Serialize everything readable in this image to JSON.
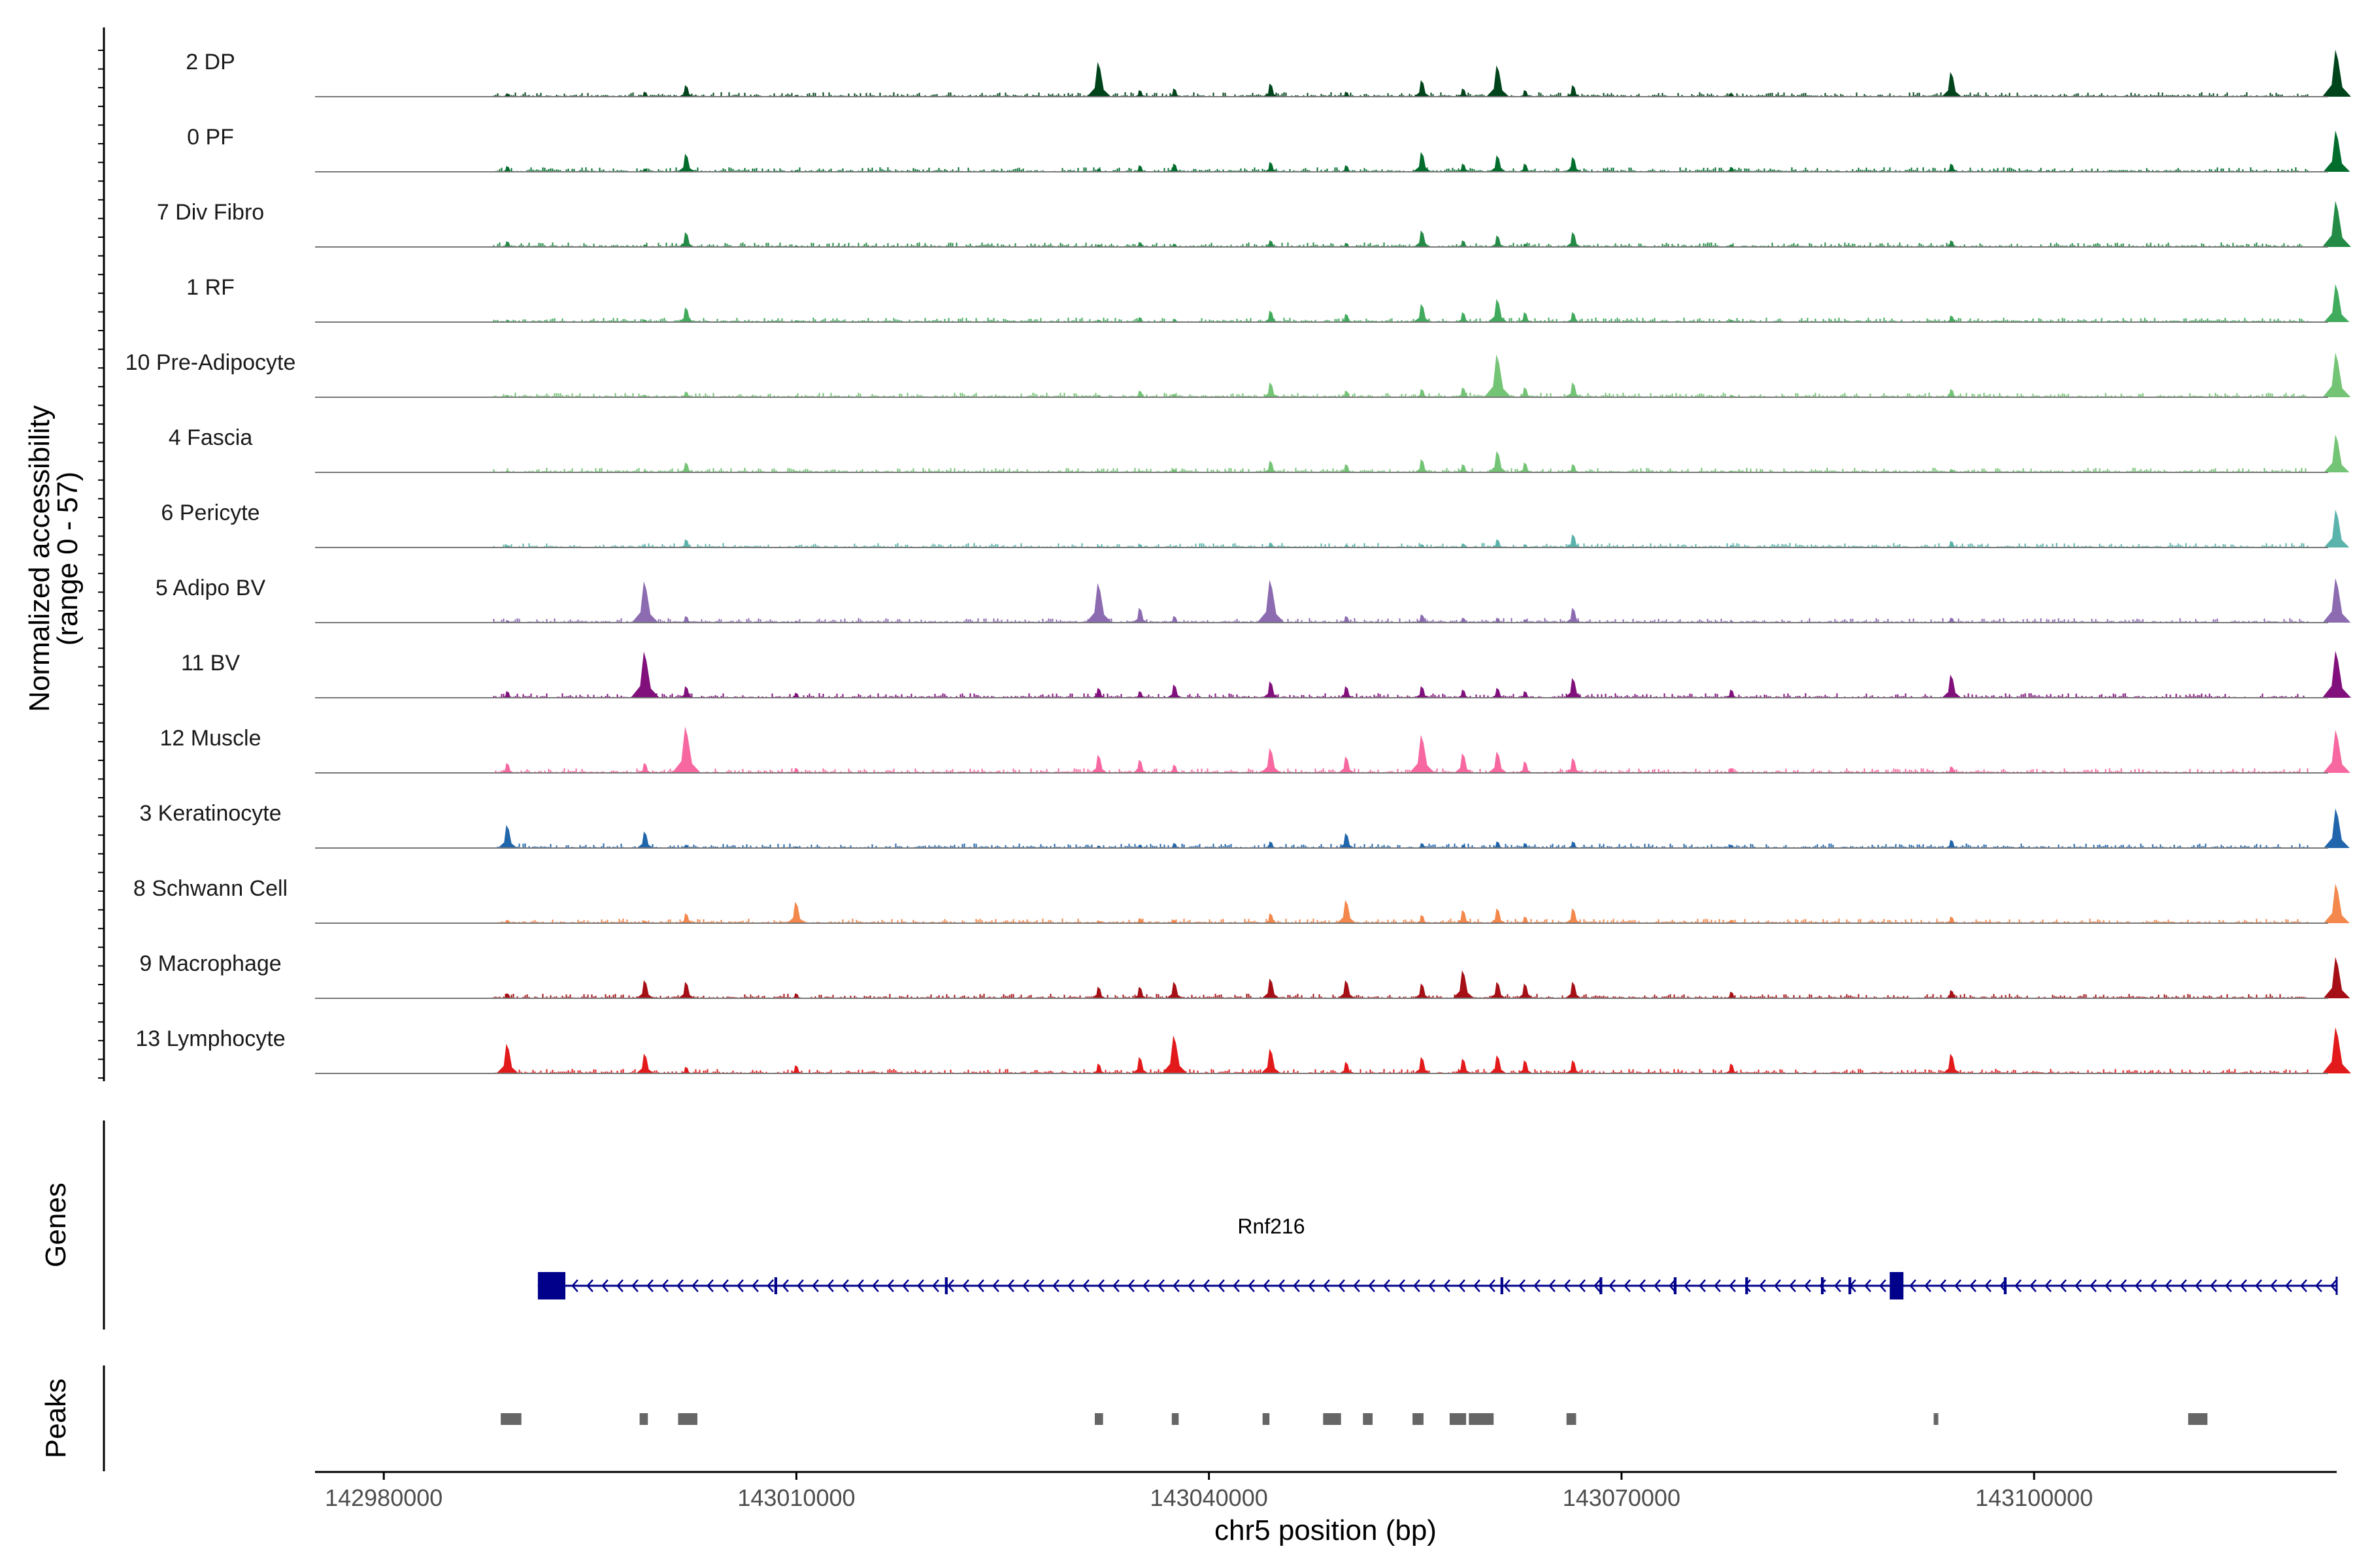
{
  "chart_data": {
    "type": "area",
    "title": "",
    "chromosome": "chr5",
    "xlabel": "chr5 position (bp)",
    "ylabel": "Normalized accessibility\n(range 0 - 57)",
    "ylabel_lines": [
      "Normalized accessibility",
      "(range 0 - 57)"
    ],
    "y_range": [
      0,
      57
    ],
    "xlim": [
      142975000,
      143122000
    ],
    "x_ticks": [
      142980000,
      143010000,
      143040000,
      143070000,
      143100000
    ],
    "x_tick_labels": [
      "142980000",
      "143010000",
      "143040000",
      "143070000",
      "143100000"
    ],
    "peak_centers": [
      142989000,
      142999000,
      143002000,
      143032000,
      143037500,
      143044500,
      143050000,
      143052000,
      143055500,
      143058500,
      143061000,
      143063000,
      143066500,
      143094000,
      143122000
    ],
    "series": [
      {
        "name": "2 DP",
        "color": "#00441b",
        "values": [
          4,
          6,
          14,
          2,
          42,
          8,
          10,
          16,
          6,
          20,
          10,
          38,
          8,
          14,
          4,
          30,
          57
        ]
      },
      {
        "name": "0 PF",
        "color": "#006d2c",
        "values": [
          7,
          4,
          22,
          2,
          4,
          8,
          10,
          12,
          8,
          24,
          10,
          20,
          10,
          18,
          6,
          10,
          50
        ]
      },
      {
        "name": "7 Div Fibro",
        "color": "#238b45",
        "values": [
          7,
          3,
          18,
          2,
          3,
          6,
          4,
          8,
          5,
          20,
          8,
          14,
          4,
          18,
          3,
          8,
          56
        ]
      },
      {
        "name": "1 RF",
        "color": "#41ab5d",
        "values": [
          3,
          3,
          18,
          2,
          3,
          6,
          4,
          14,
          10,
          22,
          12,
          28,
          12,
          12,
          3,
          8,
          46
        ]
      },
      {
        "name": "10 Pre-Adipocyte",
        "color": "#74c476",
        "values": [
          3,
          3,
          7,
          2,
          3,
          8,
          4,
          18,
          8,
          10,
          12,
          52,
          12,
          18,
          3,
          10,
          54
        ]
      },
      {
        "name": "4 Fascia",
        "color": "#74c476",
        "values": [
          2,
          2,
          12,
          2,
          2,
          2,
          4,
          14,
          10,
          16,
          10,
          26,
          12,
          10,
          2,
          4,
          46
        ]
      },
      {
        "name": "6 Pericyte",
        "color": "#5ab4ac",
        "values": [
          3,
          2,
          10,
          2,
          2,
          4,
          2,
          6,
          3,
          4,
          5,
          10,
          4,
          16,
          3,
          8,
          46
        ]
      },
      {
        "name": "5 Adipo BV",
        "color": "#8c6bb1",
        "values": [
          3,
          50,
          8,
          2,
          48,
          18,
          8,
          52,
          8,
          10,
          6,
          6,
          4,
          18,
          2,
          6,
          54
        ]
      },
      {
        "name": "11 BV",
        "color": "#810f7c",
        "values": [
          8,
          56,
          14,
          6,
          12,
          8,
          16,
          20,
          14,
          14,
          10,
          12,
          8,
          24,
          10,
          28,
          57
        ]
      },
      {
        "name": "12 Muscle",
        "color": "#f768a1",
        "values": [
          12,
          12,
          56,
          6,
          22,
          16,
          10,
          30,
          20,
          46,
          24,
          26,
          14,
          18,
          6,
          8,
          52
        ]
      },
      {
        "name": "3 Keratinocyte",
        "color": "#2166ac",
        "values": [
          28,
          20,
          4,
          2,
          3,
          4,
          6,
          8,
          18,
          6,
          4,
          8,
          6,
          8,
          4,
          10,
          48
        ]
      },
      {
        "name": "8 Schwann Cell",
        "color": "#f4874b",
        "values": [
          4,
          3,
          12,
          26,
          3,
          6,
          4,
          12,
          28,
          10,
          16,
          18,
          8,
          18,
          4,
          8,
          48
        ]
      },
      {
        "name": "9 Macrophage",
        "color": "#a50f15",
        "values": [
          6,
          22,
          20,
          6,
          14,
          14,
          20,
          24,
          22,
          18,
          34,
          20,
          18,
          20,
          8,
          10,
          50
        ]
      },
      {
        "name": "13 Lymphocyte",
        "color": "#e31a1c",
        "values": [
          36,
          24,
          8,
          10,
          12,
          20,
          46,
          30,
          14,
          20,
          18,
          22,
          16,
          16,
          12,
          24,
          56
        ]
      }
    ],
    "peak_value_positions": [
      142989000,
      142999000,
      143002000,
      143010000,
      143032000,
      143035000,
      143037500,
      143044500,
      143050000,
      143055500,
      143058500,
      143061000,
      143063000,
      143066500,
      143078000,
      143094000,
      143122000
    ],
    "genes_panel": {
      "title": "Genes",
      "gene_name": "Rnf216",
      "strand": "-",
      "start": 142991200,
      "end": 143122000,
      "exons": [
        {
          "start": 142991200,
          "end": 142993200
        },
        {
          "start": 143008400,
          "end": 143008600
        },
        {
          "start": 143020800,
          "end": 143021000
        },
        {
          "start": 143061200,
          "end": 143061400
        },
        {
          "start": 143068400,
          "end": 143068600
        },
        {
          "start": 143073800,
          "end": 143074000
        },
        {
          "start": 143079000,
          "end": 143079200
        },
        {
          "start": 143084500,
          "end": 143084700
        },
        {
          "start": 143086500,
          "end": 143086700
        },
        {
          "start": 143089500,
          "end": 143090500
        },
        {
          "start": 143097800,
          "end": 143098000
        }
      ]
    },
    "peaks_panel": {
      "title": "Peaks",
      "peaks": [
        {
          "start": 142988500,
          "end": 142990000
        },
        {
          "start": 142998600,
          "end": 142999200
        },
        {
          "start": 143001400,
          "end": 143002800
        },
        {
          "start": 143031700,
          "end": 143032300
        },
        {
          "start": 143037300,
          "end": 143037800
        },
        {
          "start": 143043900,
          "end": 143044400
        },
        {
          "start": 143048300,
          "end": 143049600
        },
        {
          "start": 143051200,
          "end": 143051900
        },
        {
          "start": 143054800,
          "end": 143055600
        },
        {
          "start": 143057500,
          "end": 143058700
        },
        {
          "start": 143058900,
          "end": 143060700
        },
        {
          "start": 143066000,
          "end": 143066700
        },
        {
          "start": 143092700,
          "end": 143093000
        },
        {
          "start": 143111200,
          "end": 143112600
        }
      ]
    }
  }
}
